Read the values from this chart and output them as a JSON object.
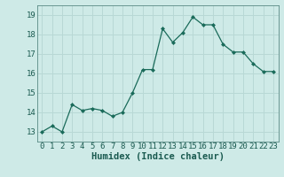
{
  "x": [
    0,
    1,
    2,
    3,
    4,
    5,
    6,
    7,
    8,
    9,
    10,
    11,
    12,
    13,
    14,
    15,
    16,
    17,
    18,
    19,
    20,
    21,
    22,
    23
  ],
  "y": [
    13.0,
    13.3,
    13.0,
    14.4,
    14.1,
    14.2,
    14.1,
    13.8,
    14.0,
    15.0,
    16.2,
    16.2,
    18.3,
    17.6,
    18.1,
    18.9,
    18.5,
    18.5,
    17.5,
    17.1,
    17.1,
    16.5,
    16.1,
    16.1
  ],
  "xlabel": "Humidex (Indice chaleur)",
  "ylim": [
    12.5,
    19.5
  ],
  "xlim": [
    -0.5,
    23.5
  ],
  "yticks": [
    13,
    14,
    15,
    16,
    17,
    18,
    19
  ],
  "xticks": [
    0,
    1,
    2,
    3,
    4,
    5,
    6,
    7,
    8,
    9,
    10,
    11,
    12,
    13,
    14,
    15,
    16,
    17,
    18,
    19,
    20,
    21,
    22,
    23
  ],
  "line_color": "#1a6b5a",
  "marker_color": "#1a6b5a",
  "bg_color": "#ceeae7",
  "grid_color": "#b8d8d5",
  "tick_label_fontsize": 6.5,
  "xlabel_fontsize": 7.5
}
